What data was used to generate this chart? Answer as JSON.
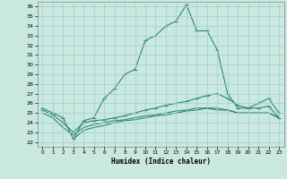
{
  "xlabel": "Humidex (Indice chaleur)",
  "bg_color": "#c8e8e0",
  "grid_color": "#a8ccc8",
  "line_color": "#1a7a6a",
  "xlim": [
    -0.5,
    23.5
  ],
  "ylim": [
    21.5,
    36.5
  ],
  "xticks": [
    0,
    1,
    2,
    3,
    4,
    5,
    6,
    7,
    8,
    9,
    10,
    11,
    12,
    13,
    14,
    15,
    16,
    17,
    18,
    19,
    20,
    21,
    22,
    23
  ],
  "yticks": [
    22,
    23,
    24,
    25,
    26,
    27,
    28,
    29,
    30,
    31,
    32,
    33,
    34,
    35,
    36
  ],
  "series": [
    {
      "x": [
        0,
        1,
        2,
        3,
        4,
        5,
        6,
        7,
        8,
        9,
        10,
        11,
        12,
        13,
        14,
        15,
        16,
        17,
        18,
        19,
        20,
        21,
        22,
        23
      ],
      "y": [
        25.5,
        25.0,
        24.5,
        22.3,
        24.2,
        24.5,
        26.5,
        27.5,
        29.0,
        29.5,
        32.5,
        33.0,
        34.0,
        34.5,
        36.2,
        33.5,
        33.5,
        31.5,
        27.0,
        25.5,
        25.5,
        26.0,
        26.5,
        25.0
      ],
      "marker": true
    },
    {
      "x": [
        0,
        1,
        2,
        3,
        4,
        5,
        6,
        7,
        8,
        9,
        10,
        11,
        12,
        13,
        14,
        15,
        16,
        17,
        18,
        19,
        20,
        21,
        22,
        23
      ],
      "y": [
        25.3,
        24.8,
        24.0,
        23.0,
        24.0,
        24.2,
        24.3,
        24.5,
        24.7,
        25.0,
        25.3,
        25.5,
        25.8,
        26.0,
        26.2,
        26.5,
        26.8,
        27.0,
        26.5,
        25.8,
        25.5,
        25.5,
        25.7,
        24.5
      ],
      "marker": true
    },
    {
      "x": [
        0,
        1,
        2,
        3,
        4,
        5,
        6,
        7,
        8,
        9,
        10,
        11,
        12,
        13,
        14,
        15,
        16,
        17,
        18,
        19,
        20,
        21,
        22,
        23
      ],
      "y": [
        25.0,
        24.5,
        23.5,
        22.7,
        23.5,
        23.8,
        24.0,
        24.2,
        24.3,
        24.5,
        24.7,
        24.8,
        25.0,
        25.2,
        25.3,
        25.5,
        25.5,
        25.5,
        25.3,
        25.0,
        25.0,
        25.0,
        25.0,
        24.5
      ],
      "marker": false
    },
    {
      "x": [
        3,
        4,
        5,
        6,
        7,
        8,
        9,
        10,
        11,
        12,
        13,
        14,
        15,
        16,
        17,
        18,
        19,
        20,
        21,
        22,
        23
      ],
      "y": [
        22.3,
        23.2,
        23.5,
        23.7,
        24.0,
        24.2,
        24.3,
        24.5,
        24.7,
        24.8,
        25.0,
        25.2,
        25.3,
        25.5,
        25.3,
        25.3,
        25.0,
        25.0,
        25.0,
        25.0,
        24.5
      ],
      "marker": false
    }
  ]
}
